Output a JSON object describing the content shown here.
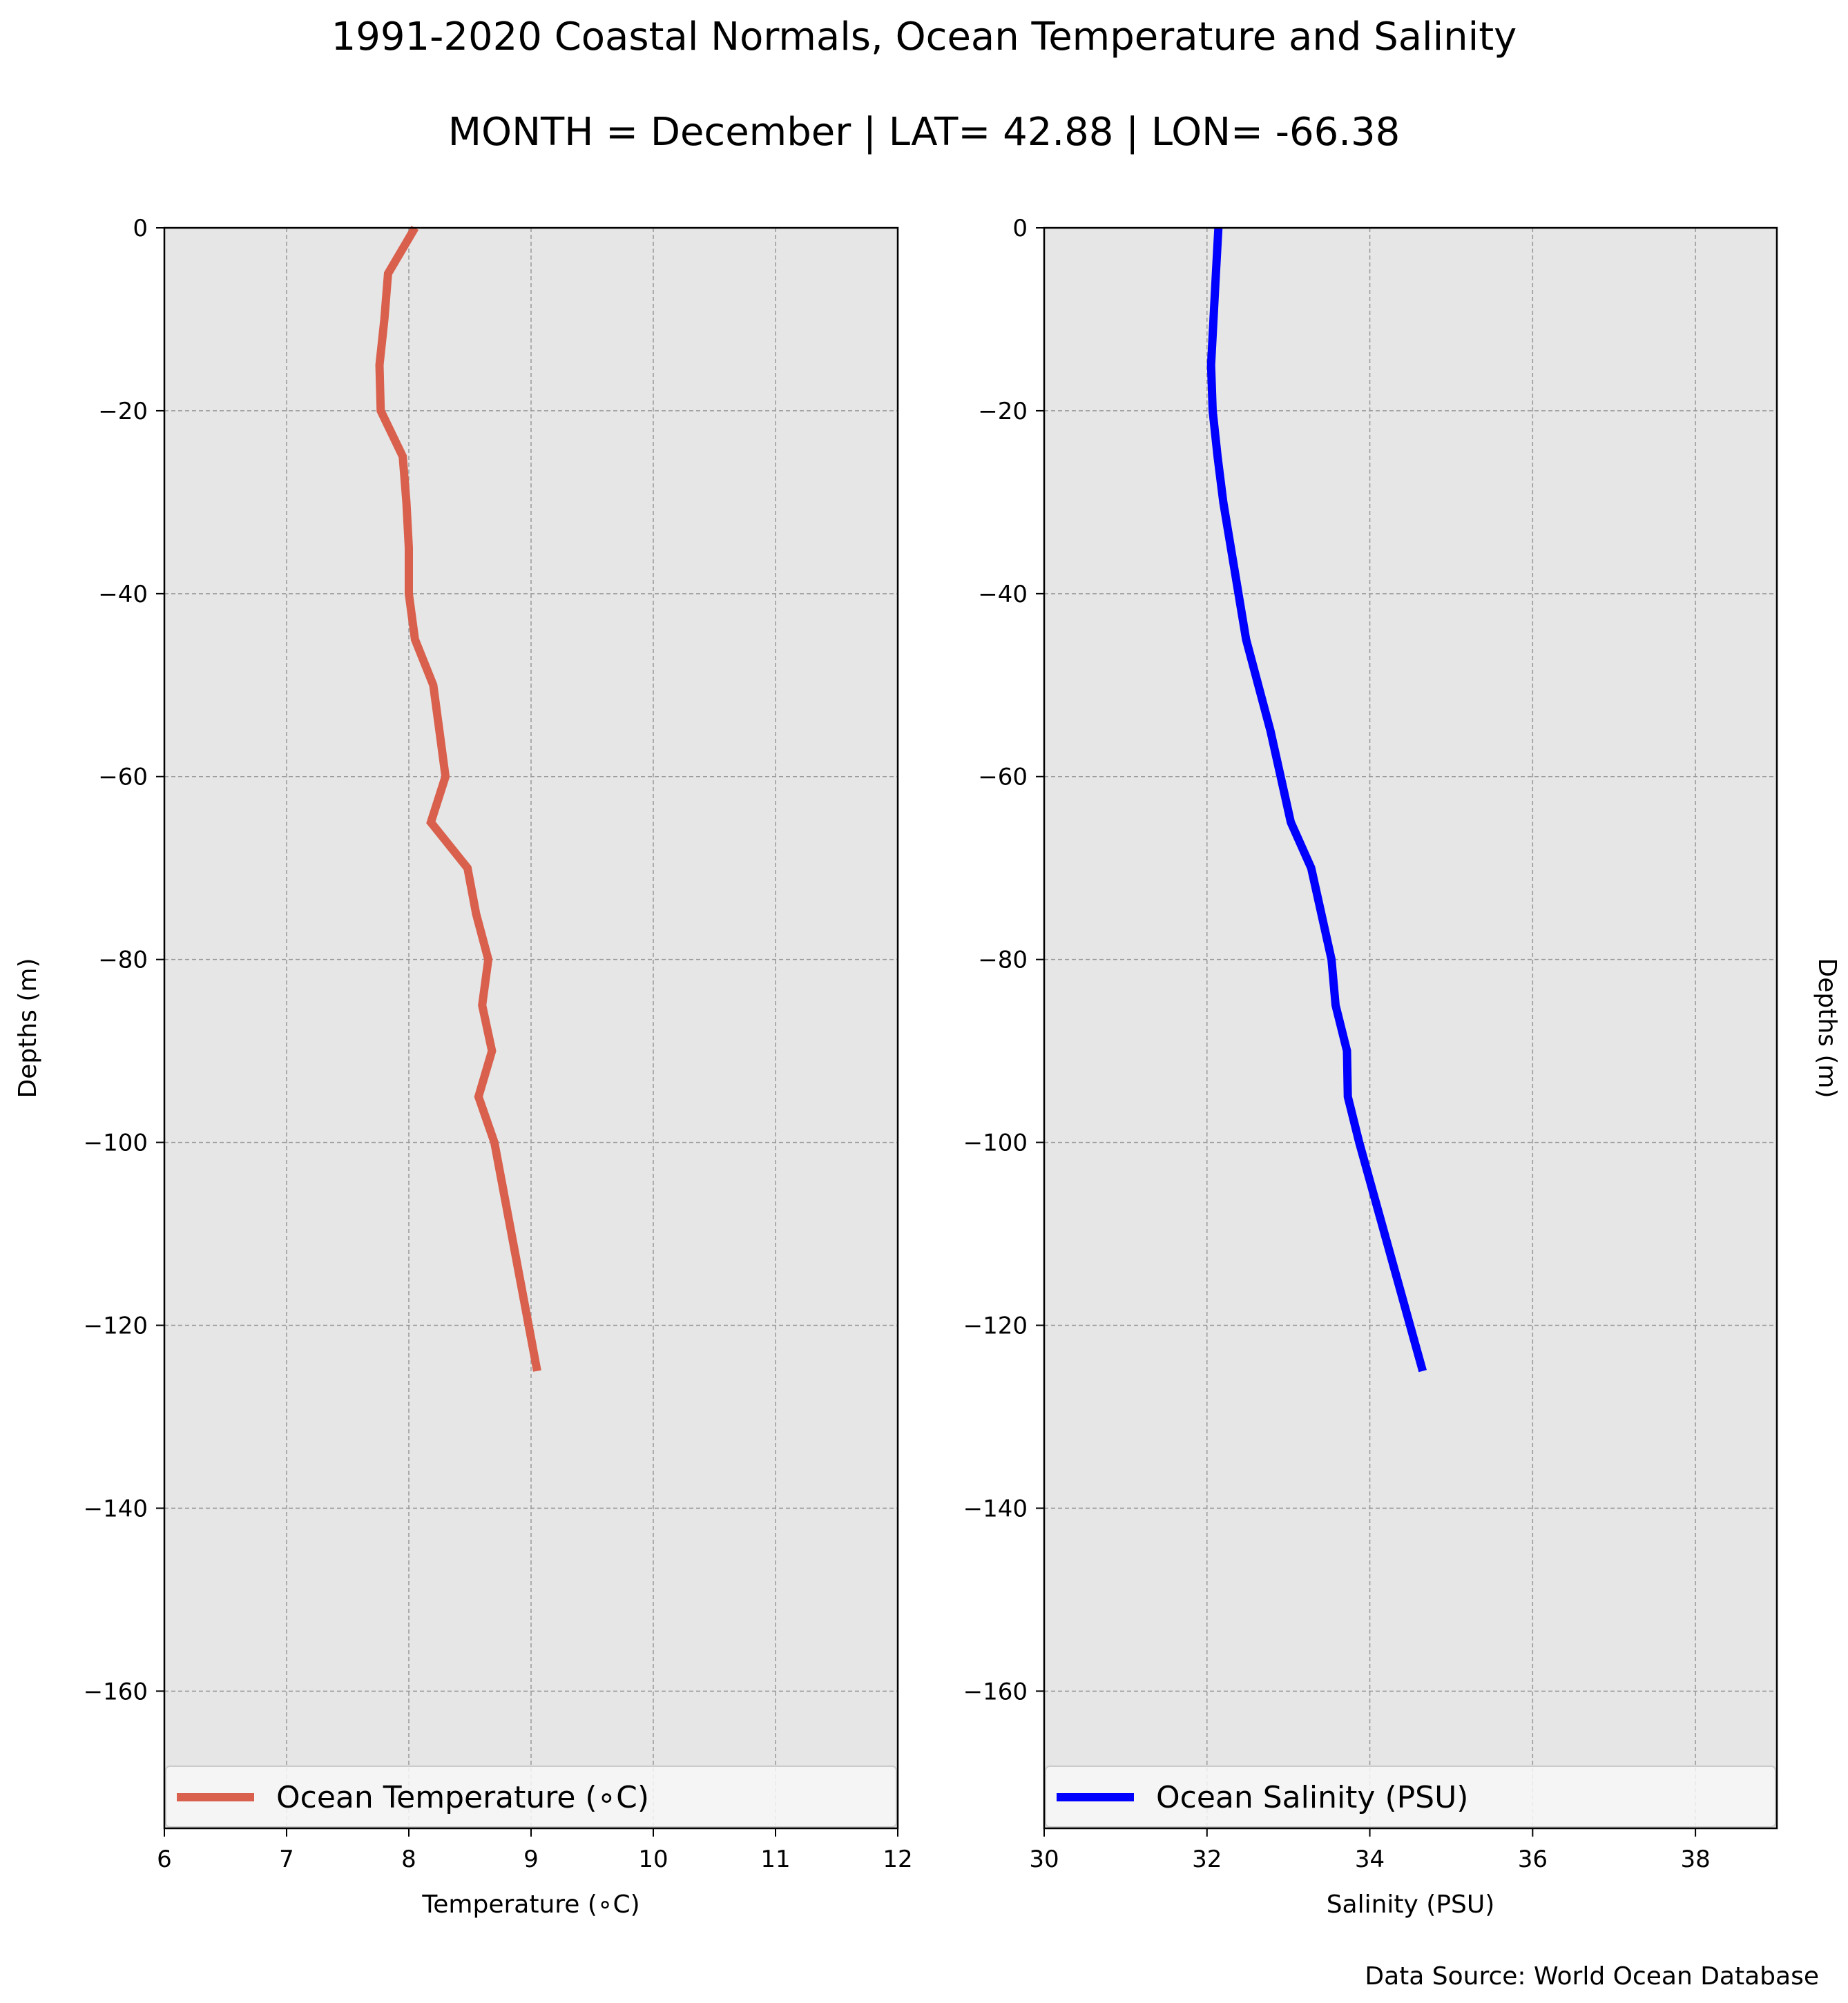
{
  "title": "1991-2020 Coastal Normals, Ocean Temperature and Salinity",
  "subtitle": "MONTH = December | LAT= 42.88 | LON= -66.38",
  "source": "Data Source: World Ocean Database",
  "colors": {
    "background": "#e6e6e6",
    "grid": "#999999",
    "temperature": "#d9604c",
    "salinity": "#0000ff"
  },
  "chart_data": [
    {
      "type": "line",
      "xlabel": "Temperature (∘C)",
      "ylabel": "Depths (m)",
      "xlim": [
        6,
        12
      ],
      "ylim": [
        -175,
        0
      ],
      "xticks": [
        6,
        7,
        8,
        9,
        10,
        11,
        12
      ],
      "yticks": [
        0,
        -20,
        -40,
        -60,
        -80,
        -100,
        -120,
        -140,
        -160
      ],
      "grid": true,
      "legend_position": "bottom",
      "series": [
        {
          "name": "Ocean Temperature (∘C)",
          "color": "#d9604c",
          "points": [
            [
              8.05,
              0
            ],
            [
              7.83,
              -5
            ],
            [
              7.8,
              -10
            ],
            [
              7.76,
              -15
            ],
            [
              7.77,
              -20
            ],
            [
              7.95,
              -25
            ],
            [
              7.98,
              -30
            ],
            [
              8.0,
              -35
            ],
            [
              8.0,
              -40
            ],
            [
              8.05,
              -45
            ],
            [
              8.2,
              -50
            ],
            [
              8.25,
              -55
            ],
            [
              8.3,
              -60
            ],
            [
              8.18,
              -65
            ],
            [
              8.48,
              -70
            ],
            [
              8.55,
              -75
            ],
            [
              8.65,
              -80
            ],
            [
              8.6,
              -85
            ],
            [
              8.68,
              -90
            ],
            [
              8.57,
              -95
            ],
            [
              8.7,
              -100
            ],
            [
              9.05,
              -125
            ]
          ]
        }
      ]
    },
    {
      "type": "line",
      "xlabel": "Salinity (PSU)",
      "ylabel": "Depths (m)",
      "xlim": [
        30,
        39
      ],
      "ylim": [
        -175,
        0
      ],
      "xticks": [
        30,
        32,
        34,
        36,
        38
      ],
      "yticks": [
        0,
        -20,
        -40,
        -60,
        -80,
        -100,
        -120,
        -140,
        -160
      ],
      "grid": true,
      "legend_position": "bottom",
      "series": [
        {
          "name": "Ocean Salinity (PSU)",
          "color": "#0000ff",
          "points": [
            [
              32.14,
              0
            ],
            [
              32.11,
              -5
            ],
            [
              32.08,
              -10
            ],
            [
              32.05,
              -15
            ],
            [
              32.07,
              -20
            ],
            [
              32.13,
              -25
            ],
            [
              32.2,
              -30
            ],
            [
              32.48,
              -45
            ],
            [
              32.78,
              -55
            ],
            [
              33.03,
              -65
            ],
            [
              33.28,
              -70
            ],
            [
              33.53,
              -80
            ],
            [
              33.58,
              -85
            ],
            [
              33.72,
              -90
            ],
            [
              33.73,
              -95
            ],
            [
              33.87,
              -100
            ],
            [
              34.65,
              -125
            ]
          ]
        }
      ]
    }
  ]
}
